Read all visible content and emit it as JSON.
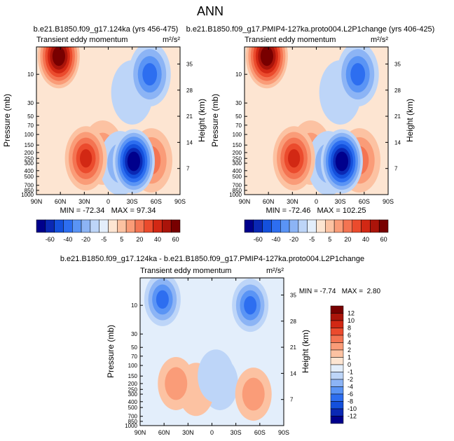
{
  "title": "ANN",
  "chart_data": [
    {
      "type": "heatmap",
      "title": "b.e21.B1850.f09_g17.124ka (yrs 456-475)",
      "subtitle": "Transient eddy momentum",
      "units": "m²/s²",
      "xlabel": "",
      "ylabel": "Pressure (mb)",
      "ylabel_right": "Height (km)",
      "x_ticks": [
        "90N",
        "60N",
        "30N",
        "0",
        "30S",
        "60S",
        "90S"
      ],
      "y_ticks": [
        "10",
        "30",
        "50",
        "70",
        "100",
        "150",
        "200",
        "250",
        "300",
        "400",
        "500",
        "700",
        "850",
        "1000"
      ],
      "height_ticks": [
        "35",
        "28",
        "21",
        "14",
        "7"
      ],
      "stats": "MIN = -72.34   MAX = 97.34",
      "features": [
        {
          "lat": 62,
          "pressure": 5,
          "value": 97
        },
        {
          "lat": 28,
          "pressure": 250,
          "value": 40
        },
        {
          "lat": 7,
          "pressure": 200,
          "value": 12
        },
        {
          "lat": -32,
          "pressure": 280,
          "value": -72
        },
        {
          "lat": -52,
          "pressure": 10,
          "value": -38
        },
        {
          "lat": -54,
          "pressure": 270,
          "value": 22
        },
        {
          "lat": -15,
          "pressure": 300,
          "value": -12
        },
        {
          "lat": -30,
          "pressure": 20,
          "value": -8
        }
      ]
    },
    {
      "type": "heatmap",
      "title": "b.e21.B1850.f09_g17.PMIP4-127ka.proto004.L2P1change (yrs 406-425)",
      "subtitle": "Transient eddy momentum",
      "units": "m²/s²",
      "xlabel": "",
      "ylabel": "Pressure (mb)",
      "ylabel_right": "Height (km)",
      "x_ticks": [
        "90N",
        "60N",
        "30N",
        "0",
        "30S",
        "60S",
        "90S"
      ],
      "y_ticks": [
        "10",
        "30",
        "50",
        "70",
        "100",
        "150",
        "200",
        "250",
        "300",
        "400",
        "500",
        "700",
        "850",
        "1000"
      ],
      "height_ticks": [
        "35",
        "28",
        "21",
        "14",
        "7"
      ],
      "stats": "MIN = -72.46   MAX = 102.25",
      "features": [
        {
          "lat": 62,
          "pressure": 5,
          "value": 102
        },
        {
          "lat": 28,
          "pressure": 250,
          "value": 40
        },
        {
          "lat": 7,
          "pressure": 200,
          "value": 12
        },
        {
          "lat": -32,
          "pressure": 280,
          "value": -72
        },
        {
          "lat": -52,
          "pressure": 10,
          "value": -38
        },
        {
          "lat": -54,
          "pressure": 270,
          "value": 22
        },
        {
          "lat": -15,
          "pressure": 300,
          "value": -12
        },
        {
          "lat": -30,
          "pressure": 20,
          "value": -8
        }
      ]
    },
    {
      "type": "heatmap",
      "title": "b.e21.B1850.f09_g17.124ka - b.e21.B1850.f09_g17.PMIP4-127ka.proto004.L2P1change",
      "subtitle": "Transient eddy momentum",
      "units": "m²/s²",
      "xlabel": "",
      "ylabel": "Pressure (mb)",
      "ylabel_right": "Height (km)",
      "x_ticks": [
        "90N",
        "60N",
        "30N",
        "0",
        "30S",
        "60S",
        "90S"
      ],
      "y_ticks": [
        "10",
        "30",
        "50",
        "70",
        "100",
        "150",
        "200",
        "250",
        "300",
        "400",
        "500",
        "700",
        "850",
        "1000"
      ],
      "height_ticks": [
        "35",
        "28",
        "21",
        "14",
        "7"
      ],
      "stats": "MIN = -7.74   MAX =  2.80",
      "features": [
        {
          "lat": 62,
          "pressure": 8,
          "value": -7.7
        },
        {
          "lat": -48,
          "pressure": 10,
          "value": -6
        },
        {
          "lat": 45,
          "pressure": 200,
          "value": 2.5
        },
        {
          "lat": -52,
          "pressure": 300,
          "value": 2.8
        },
        {
          "lat": 20,
          "pressure": 250,
          "value": 1.2
        },
        {
          "lat": -5,
          "pressure": 150,
          "value": -1.5
        },
        {
          "lat": -10,
          "pressure": 200,
          "value": -1.0
        },
        {
          "lat": 0,
          "pressure": 500,
          "value": -0.8
        }
      ]
    }
  ],
  "colorbars": {
    "main": {
      "labels": [
        "-60",
        "-40",
        "-20",
        "-5",
        "5",
        "20",
        "40",
        "60"
      ],
      "colors": [
        "#00008c",
        "#0a28b4",
        "#1450dc",
        "#2d6ef0",
        "#5a94f5",
        "#8cb4f5",
        "#bdd5f8",
        "#e3eefb",
        "#fde5d2",
        "#fcc2a2",
        "#fa9c78",
        "#f47452",
        "#eb4b2d",
        "#d22814",
        "#aa140a",
        "#780000"
      ]
    },
    "diff": {
      "labels": [
        "12",
        "10",
        "8",
        "6",
        "4",
        "2",
        "1",
        "0",
        "-1",
        "-2",
        "-4",
        "-6",
        "-8",
        "-10",
        "-12"
      ],
      "colors": [
        "#780000",
        "#aa140a",
        "#d22814",
        "#eb4b2d",
        "#f47452",
        "#fa9c78",
        "#fcc2a2",
        "#fde5d2",
        "#e3eefb",
        "#bdd5f8",
        "#8cb4f5",
        "#5a94f5",
        "#2d6ef0",
        "#1450dc",
        "#0a28b4",
        "#00008c"
      ]
    }
  }
}
